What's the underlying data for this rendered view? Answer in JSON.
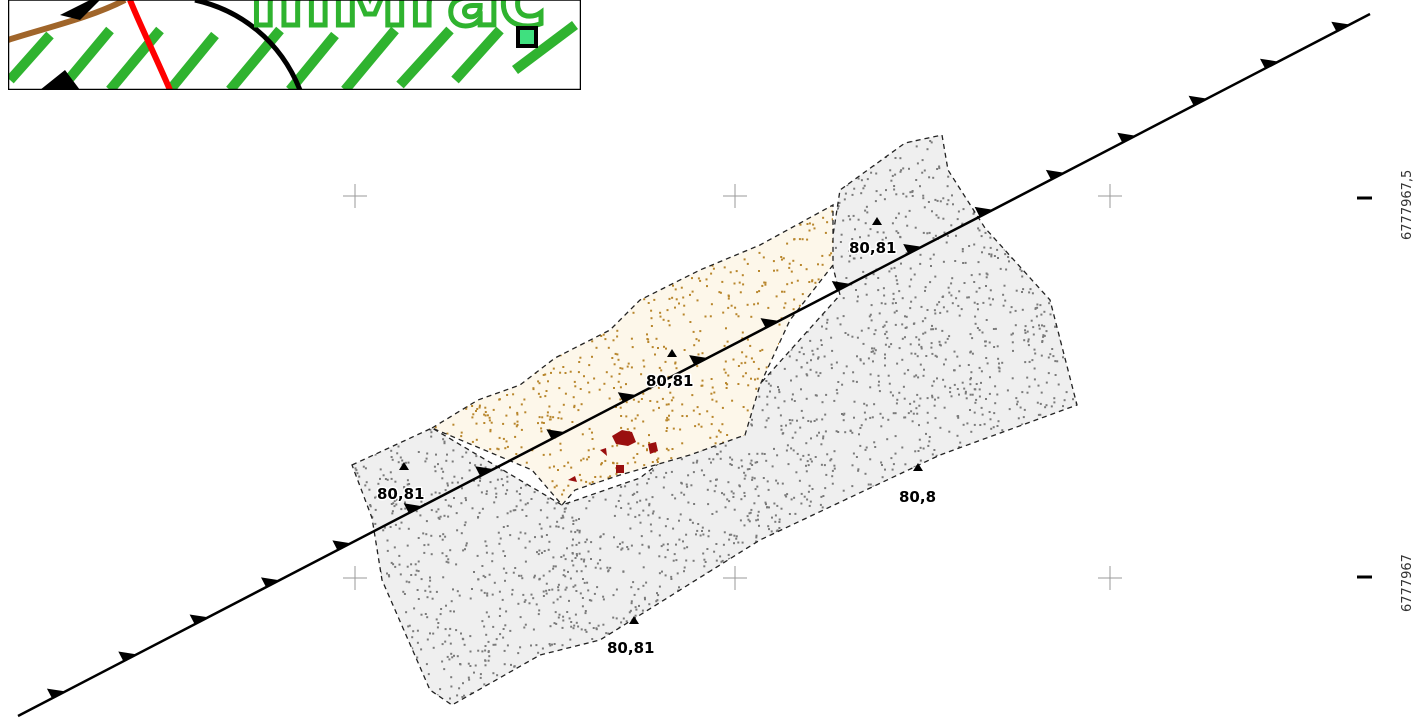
{
  "map": {
    "elevation_points": [
      {
        "label": "80,81"
      },
      {
        "label": "80,81"
      },
      {
        "label": "80,81"
      },
      {
        "label": "80,8"
      },
      {
        "label": "80,81"
      }
    ],
    "coordinates": {
      "north_top": "6777967,5",
      "north_bottom": "6777967"
    },
    "colors": {
      "line": "#000000",
      "grey_fill": "#efefef",
      "grey_dots": "#7a7a7a",
      "sand_fill": "#fdf7ea",
      "sand_dots": "#b8862c",
      "find_marks": "#9a0f0f",
      "inset_green": "#2fb32f",
      "inset_brown": "#a0652a",
      "inset_red": "#ff0000"
    },
    "inset": {
      "partial_text": "mMrac"
    }
  }
}
